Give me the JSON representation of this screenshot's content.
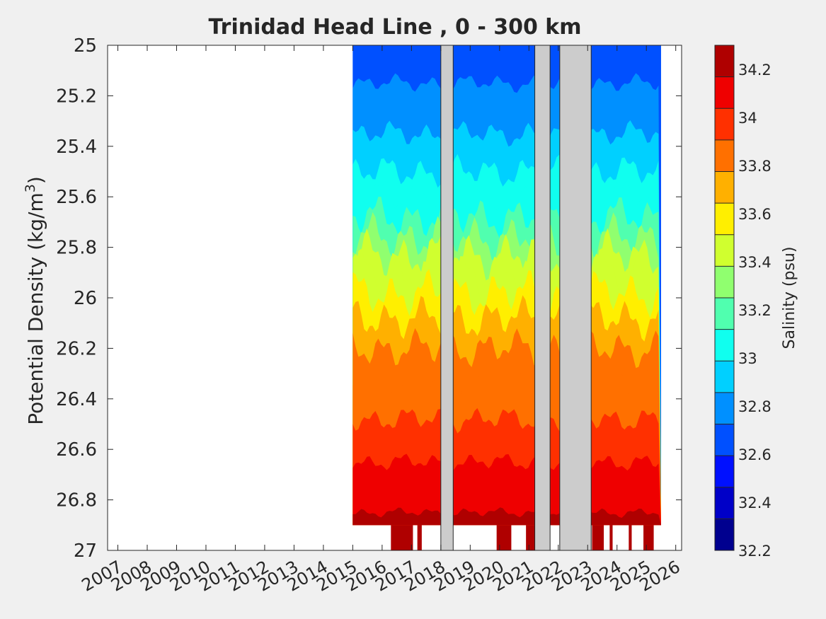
{
  "chart_data": {
    "type": "heatmap",
    "title": "Trinidad Head Line , 0 - 300 km",
    "ylabel_main": "Potential Density (kg/m",
    "ylabel_sup": "3",
    "ylabel_end": ")",
    "ylim": [
      25,
      27
    ],
    "y_reversed": true,
    "y_ticks": [
      "25",
      "25.2",
      "25.4",
      "25.6",
      "25.8",
      "26",
      "26.2",
      "26.4",
      "26.6",
      "26.8",
      "27"
    ],
    "x_ticks": [
      "2007",
      "2008",
      "2009",
      "2010",
      "2011",
      "2012",
      "2013",
      "2014",
      "2015",
      "2016",
      "2017",
      "2018",
      "2019",
      "2020",
      "2021",
      "2022",
      "2023",
      "2024",
      "2025",
      "2026"
    ],
    "xlim": [
      2006.65,
      2026.2
    ],
    "data_start_year": 2015,
    "data_end_year": 2025.5,
    "no_data_periods": [
      [
        2018.0,
        2018.42
      ],
      [
        2021.2,
        2021.72
      ],
      [
        2022.05,
        2023.12
      ]
    ],
    "salinity_contours": [
      {
        "salinity": 32.7,
        "density": 25.0
      },
      {
        "salinity": 32.8,
        "density": 25.15
      },
      {
        "salinity": 32.9,
        "density": 25.35
      },
      {
        "salinity": 33.0,
        "density": 25.5
      },
      {
        "salinity": 33.1,
        "density": 25.6
      },
      {
        "salinity": 33.2,
        "density": 25.68
      },
      {
        "salinity": 33.3,
        "density": 25.76
      },
      {
        "salinity": 33.4,
        "density": 25.83
      },
      {
        "salinity": 33.5,
        "density": 25.9
      },
      {
        "salinity": 33.6,
        "density": 25.98
      },
      {
        "salinity": 33.7,
        "density": 26.08
      },
      {
        "salinity": 33.8,
        "density": 26.2
      },
      {
        "salinity": 33.9,
        "density": 26.33
      },
      {
        "salinity": 34.0,
        "density": 26.48
      },
      {
        "salinity": 34.1,
        "density": 26.65
      },
      {
        "salinity": 34.2,
        "density": 26.85
      }
    ],
    "colorbar": {
      "label": "Salinity (psu)",
      "range": [
        32.2,
        34.3
      ],
      "ticks": [
        "32.2",
        "32.4",
        "32.6",
        "32.8",
        "33",
        "33.2",
        "33.4",
        "33.6",
        "33.8",
        "34",
        "34.2"
      ],
      "colors": [
        "#00008f",
        "#0000c8",
        "#0010ff",
        "#0050ff",
        "#0090ff",
        "#00d0ff",
        "#10ffef",
        "#50ffaf",
        "#90ff6f",
        "#d0ff2f",
        "#ffef00",
        "#ffb000",
        "#ff7000",
        "#ff3000",
        "#ef0000",
        "#af0000"
      ]
    },
    "nan_color": "#cccccc",
    "grid": false,
    "legend": "none"
  }
}
